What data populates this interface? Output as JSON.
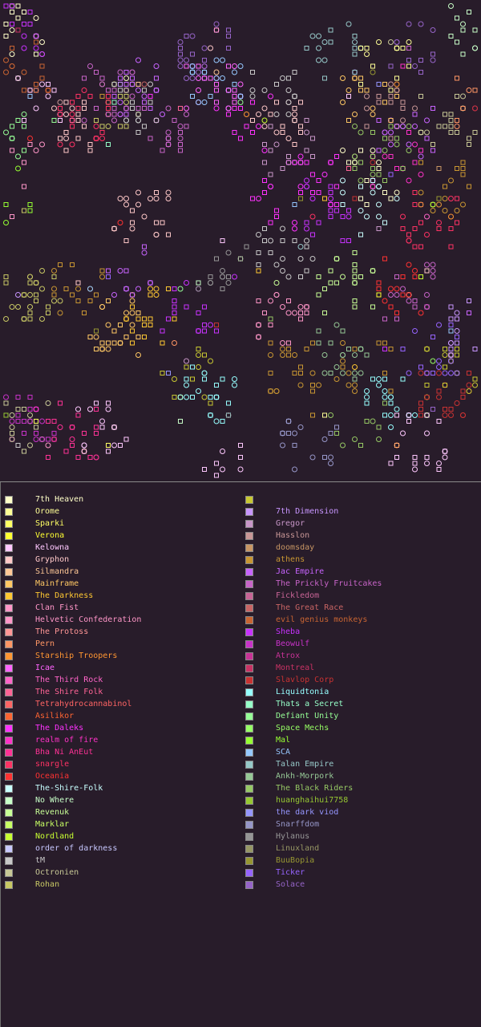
{
  "map": {
    "seed": 7,
    "symbol_count": 1400,
    "symbol_types": [
      "square",
      "circle"
    ]
  },
  "legend": {
    "columns": [
      [
        {
          "name": "7th Heaven",
          "color": "#ffffc8"
        },
        {
          "name": "Orome",
          "color": "#ffff96"
        },
        {
          "name": "Sparki",
          "color": "#ffff64"
        },
        {
          "name": "Verona",
          "color": "#ffff32"
        },
        {
          "name": "Kelowna",
          "color": "#ffc8ff"
        },
        {
          "name": "Gryphon",
          "color": "#ffc8c8"
        },
        {
          "name": "Silmandra",
          "color": "#ffc896"
        },
        {
          "name": "Mainframe",
          "color": "#ffc864"
        },
        {
          "name": "The Darkness",
          "color": "#ffc832"
        },
        {
          "name": "Clan Fist",
          "color": "#ff96c8"
        },
        {
          "name": "Helvetic Confederation",
          "color": "#ff96c8"
        },
        {
          "name": "The Protoss",
          "color": "#ff9696"
        },
        {
          "name": "Pern",
          "color": "#ff9664"
        },
        {
          "name": "Starship Troopers",
          "color": "#ff9632"
        },
        {
          "name": "Icae",
          "color": "#ff64ff"
        },
        {
          "name": "The Third Rock",
          "color": "#ff64c8"
        },
        {
          "name": "The Shire Folk",
          "color": "#ff6496"
        },
        {
          "name": "Tetrahydrocannabinol",
          "color": "#ff6464"
        },
        {
          "name": "Asilikor",
          "color": "#ff6432"
        },
        {
          "name": "The Daleks",
          "color": "#ff32ff"
        },
        {
          "name": "realm of fire",
          "color": "#ff32c8"
        },
        {
          "name": "Bha Ni AnEut",
          "color": "#ff3296"
        },
        {
          "name": "snargle",
          "color": "#ff3264"
        },
        {
          "name": "Oceania",
          "color": "#ff3232"
        },
        {
          "name": "The-Shire-Folk",
          "color": "#c8ffff"
        },
        {
          "name": "No Where",
          "color": "#c8ffc8"
        },
        {
          "name": "Revenuk",
          "color": "#c8ff96"
        },
        {
          "name": "Marklar",
          "color": "#c8ff64"
        },
        {
          "name": "Nordland",
          "color": "#c8ff32"
        },
        {
          "name": "order of darkness",
          "color": "#c8c8ff"
        },
        {
          "name": "tM",
          "color": "#c8c8c8"
        },
        {
          "name": "Octronien",
          "color": "#c8c896"
        },
        {
          "name": "Rohan",
          "color": "#c8c864"
        }
      ],
      [
        {
          "name": "",
          "color": "#c8c832"
        },
        {
          "name": "7th Dimension",
          "color": "#c896ff"
        },
        {
          "name": "Gregor",
          "color": "#c896c8"
        },
        {
          "name": "Hasslon",
          "color": "#c89696"
        },
        {
          "name": "doomsday",
          "color": "#c89664"
        },
        {
          "name": "athens",
          "color": "#c89632"
        },
        {
          "name": "Jac Empire",
          "color": "#c864ff"
        },
        {
          "name": "The Prickly Fruitcakes",
          "color": "#c864c8"
        },
        {
          "name": "Fickledom",
          "color": "#c86496"
        },
        {
          "name": "The Great Race",
          "color": "#c86464"
        },
        {
          "name": "evil genius monkeys",
          "color": "#c86432"
        },
        {
          "name": "Sheba",
          "color": "#c832ff"
        },
        {
          "name": "Beowulf",
          "color": "#c832c8"
        },
        {
          "name": "Atrox",
          "color": "#c83296"
        },
        {
          "name": "Montreal",
          "color": "#c83264"
        },
        {
          "name": "Slavlop Corp",
          "color": "#c83232"
        },
        {
          "name": "Liquidtonia",
          "color": "#96ffff"
        },
        {
          "name": "Thats a Secret",
          "color": "#96ffc8"
        },
        {
          "name": "Defiant Unity",
          "color": "#96ff96"
        },
        {
          "name": "Space Mechs",
          "color": "#96ff64"
        },
        {
          "name": "Mal",
          "color": "#96ff32"
        },
        {
          "name": "SCA",
          "color": "#96c8ff"
        },
        {
          "name": "Talan Empire",
          "color": "#96c8c8"
        },
        {
          "name": "Ankh-Morpork",
          "color": "#96c896"
        },
        {
          "name": "The Black Riders",
          "color": "#96c864"
        },
        {
          "name": "huanghaihui7758",
          "color": "#96c832"
        },
        {
          "name": "the dark viod",
          "color": "#9696ff"
        },
        {
          "name": "Snarffdom",
          "color": "#9696c8"
        },
        {
          "name": "Hylanus",
          "color": "#969696"
        },
        {
          "name": "Linuxland",
          "color": "#969664"
        },
        {
          "name": "BuuBopia",
          "color": "#969632"
        },
        {
          "name": "Ticker",
          "color": "#9664ff"
        },
        {
          "name": "Solace",
          "color": "#9664c8"
        }
      ]
    ]
  }
}
